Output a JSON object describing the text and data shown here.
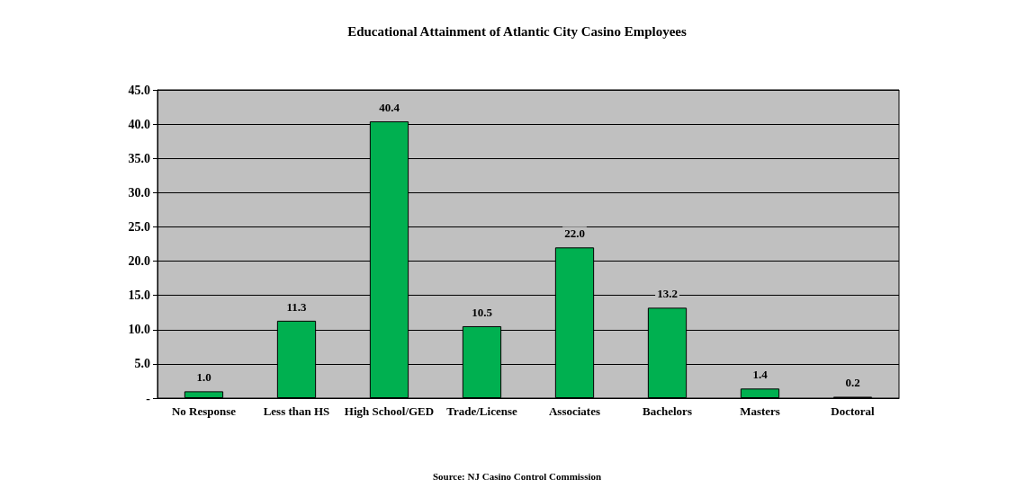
{
  "chart_data": {
    "type": "bar",
    "title": "Educational Attainment of Atlantic City Casino Employees",
    "categories": [
      "No Response",
      "Less than HS",
      "High School/GED",
      "Trade/License",
      "Associates",
      "Bachelors",
      "Masters",
      "Doctoral"
    ],
    "values": [
      1.0,
      11.3,
      40.4,
      10.5,
      22.0,
      13.2,
      1.4,
      0.2
    ],
    "value_labels": [
      "1.0",
      "11.3",
      "40.4",
      "10.5",
      "22.0",
      "13.2",
      "1.4",
      "0.2"
    ],
    "color": "#00b050",
    "ylim": [
      0,
      45
    ],
    "yticks": [
      {
        "value": 0,
        "label": "-"
      },
      {
        "value": 5,
        "label": "5.0"
      },
      {
        "value": 10,
        "label": "10.0"
      },
      {
        "value": 15,
        "label": "15.0"
      },
      {
        "value": 20,
        "label": "20.0"
      },
      {
        "value": 25,
        "label": "25.0"
      },
      {
        "value": 30,
        "label": "30.0"
      },
      {
        "value": 35,
        "label": "35.0"
      },
      {
        "value": 40,
        "label": "40.0"
      },
      {
        "value": 45,
        "label": "45.0"
      }
    ],
    "grid": "y",
    "annotations": [
      "Source: NJ Casino Control Commission"
    ]
  }
}
